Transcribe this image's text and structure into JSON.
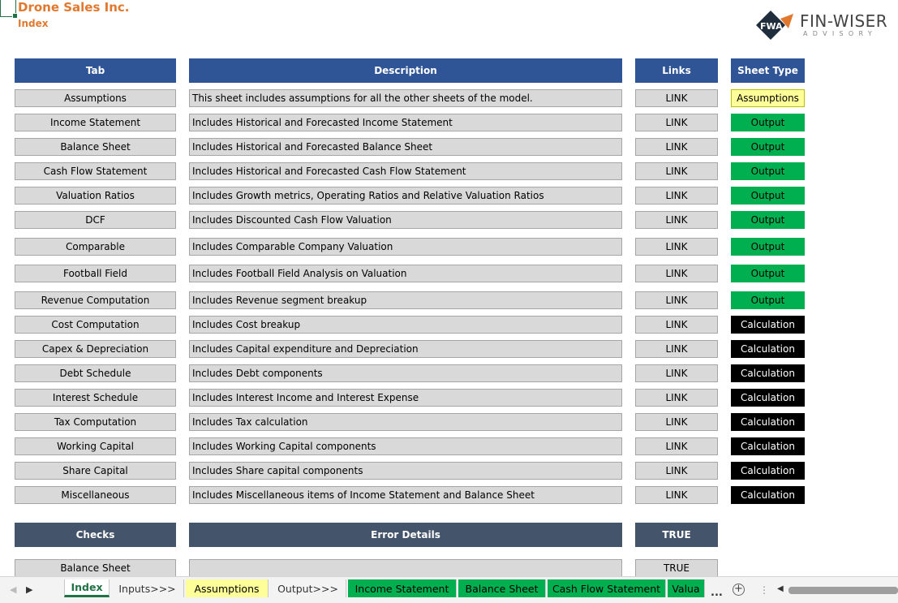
{
  "header": {
    "company": "Drone Sales Inc.",
    "subtitle": "Index"
  },
  "logo": {
    "mark": "FWA",
    "brand": "FIN-WISER",
    "tagline": "ADVISORY"
  },
  "index_table": {
    "columns": [
      "Tab",
      "Description",
      "Links",
      "Sheet Type"
    ],
    "rows": [
      {
        "tab": "Assumptions",
        "description": "This sheet includes assumptions for all the other sheets of the model.",
        "link": "LINK",
        "type": "Assumptions"
      },
      {
        "tab": "Income Statement",
        "description": "Includes Historical and Forecasted Income Statement",
        "link": "LINK",
        "type": "Output"
      },
      {
        "tab": "Balance Sheet",
        "description": "Includes Historical and Forecasted Balance Sheet",
        "link": "LINK",
        "type": "Output"
      },
      {
        "tab": "Cash Flow Statement",
        "description": "Includes Historical and Forecasted Cash Flow Statement",
        "link": "LINK",
        "type": "Output"
      },
      {
        "tab": "Valuation Ratios",
        "description": "Includes Growth metrics, Operating Ratios and Relative Valuation Ratios",
        "link": "LINK",
        "type": "Output"
      },
      {
        "tab": "DCF",
        "description": "Includes Discounted Cash Flow Valuation",
        "link": "LINK",
        "type": "Output"
      },
      {
        "tab": "Comparable",
        "description": "Includes Comparable Company Valuation",
        "link": "LINK",
        "type": "Output"
      },
      {
        "tab": "Football Field",
        "description": "Includes Football Field Analysis on Valuation",
        "link": "LINK",
        "type": "Output"
      },
      {
        "tab": "Revenue Computation",
        "description": "Includes Revenue segment breakup",
        "link": "LINK",
        "type": "Output"
      },
      {
        "tab": "Cost Computation",
        "description": "Includes Cost breakup",
        "link": "LINK",
        "type": "Calculation"
      },
      {
        "tab": "Capex & Depreciation",
        "description": "Includes Capital expenditure and Depreciation",
        "link": "LINK",
        "type": "Calculation"
      },
      {
        "tab": "Debt Schedule",
        "description": "Includes Debt components",
        "link": "LINK",
        "type": "Calculation"
      },
      {
        "tab": "Interest Schedule",
        "description": "Includes Interest Income and Interest Expense",
        "link": "LINK",
        "type": "Calculation"
      },
      {
        "tab": "Tax Computation",
        "description": "Includes Tax calculation",
        "link": "LINK",
        "type": "Calculation"
      },
      {
        "tab": "Working Capital",
        "description": "Includes Working Capital components",
        "link": "LINK",
        "type": "Calculation"
      },
      {
        "tab": "Share Capital",
        "description": "Includes Share capital components",
        "link": "LINK",
        "type": "Calculation"
      },
      {
        "tab": "Miscellaneous",
        "description": "Includes Miscellaneous items of Income Statement and Balance Sheet",
        "link": "LINK",
        "type": "Calculation"
      }
    ]
  },
  "sheet_type_colors": {
    "Assumptions": {
      "bg": "#ffff99",
      "fg": "#000000"
    },
    "Output": {
      "bg": "#00b050",
      "fg": "#000000"
    },
    "Calculation": {
      "bg": "#000000",
      "fg": "#ffffff"
    }
  },
  "checks_table": {
    "columns": [
      "Checks",
      "Error Details",
      "TRUE"
    ],
    "rows": [
      {
        "check": "Balance Sheet",
        "detail": "",
        "value": "TRUE"
      }
    ]
  },
  "sheet_tabs": [
    {
      "label": "Index",
      "style": "active"
    },
    {
      "label": "Inputs>>>",
      "style": "plain"
    },
    {
      "label": "Assumptions",
      "style": "yellow"
    },
    {
      "label": "Output>>>",
      "style": "plain"
    },
    {
      "label": "Income Statement",
      "style": "green"
    },
    {
      "label": "Balance Sheet",
      "style": "green"
    },
    {
      "label": "Cash Flow Statement",
      "style": "green"
    },
    {
      "label": "Valua",
      "style": "green"
    }
  ],
  "tabbar": {
    "more": "...",
    "add": "+"
  },
  "accent_colors": {
    "title": "#e0792e",
    "header_blue": "#2f5597",
    "header_slate": "#44546a",
    "excel_green": "#217346"
  }
}
